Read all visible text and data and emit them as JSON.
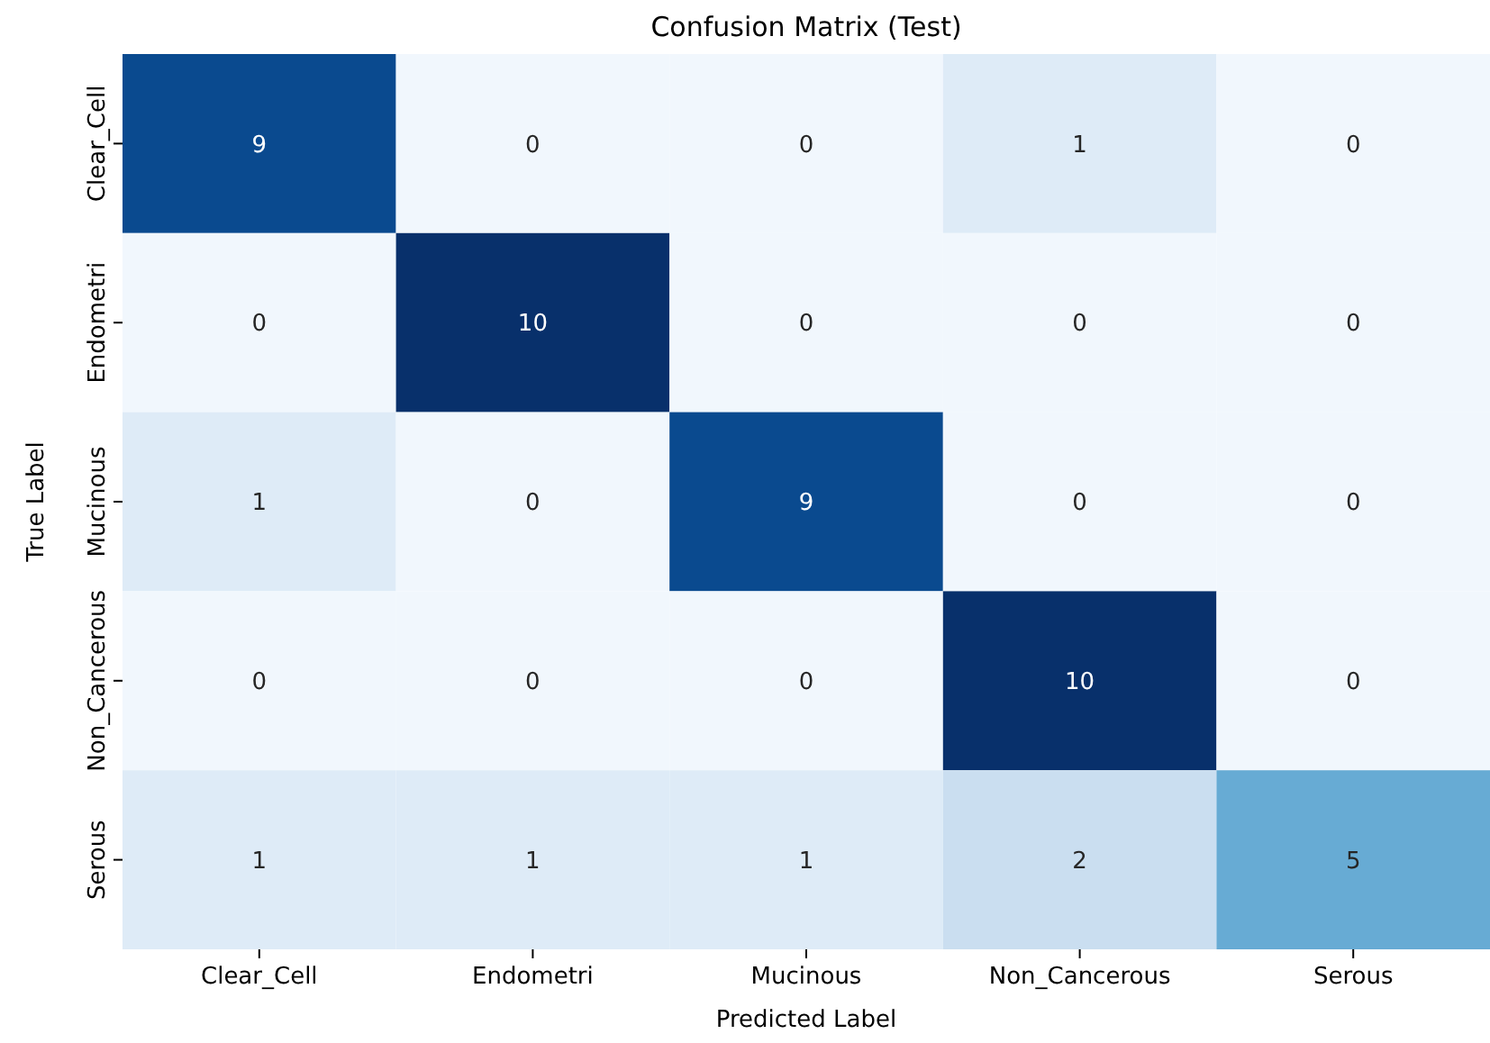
{
  "chart_data": {
    "type": "heatmap",
    "title": "Confusion Matrix (Test)",
    "xlabel": "Predicted Label",
    "ylabel": "True Label",
    "categories": [
      "Clear_Cell",
      "Endometri",
      "Mucinous",
      "Non_Cancerous",
      "Serous"
    ],
    "y_categories": [
      "Clear_Cell",
      "Endometri",
      "Mucinous",
      "Non_Cancerous",
      "Serous"
    ],
    "cells": [
      [
        9,
        0,
        0,
        1,
        0
      ],
      [
        0,
        10,
        0,
        0,
        0
      ],
      [
        1,
        0,
        9,
        0,
        0
      ],
      [
        0,
        0,
        0,
        10,
        0
      ],
      [
        1,
        1,
        1,
        2,
        5
      ]
    ],
    "data_labels": true
  }
}
